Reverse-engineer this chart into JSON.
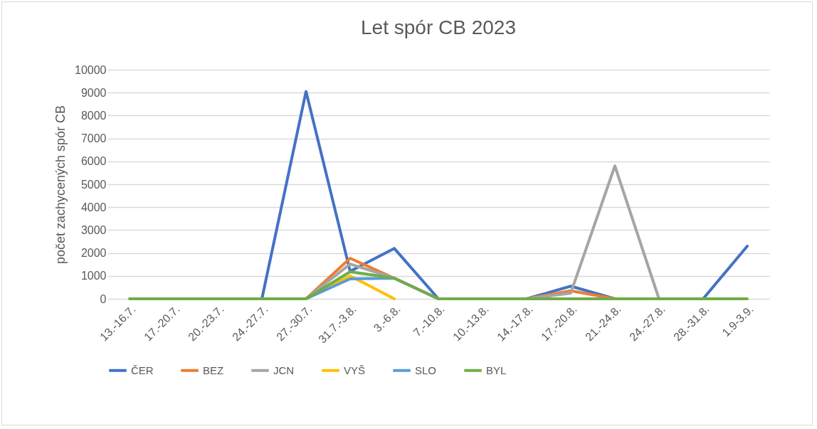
{
  "chart_data": {
    "type": "line",
    "title": "Let spór CB 2023",
    "ylabel": "počet zachycených spór CB",
    "categories": [
      "13.-16.7.",
      "17.-20.7.",
      "20.-23.7.",
      "24.-27.7.",
      "27.-30.7.",
      "31.7.-3.8.",
      "3.-6.8.",
      "7.-10.8.",
      "10.-13.8.",
      "14.-17.8.",
      "17.-20.8.",
      "21.-24.8.",
      "24.-27.8.",
      "28.-31.8.",
      "1.9-3.9."
    ],
    "series": [
      {
        "name": "ČER",
        "color": "#4472c4",
        "values": [
          null,
          null,
          null,
          0,
          9050,
          1200,
          2200,
          0,
          null,
          0,
          550,
          0,
          null,
          0,
          2300
        ]
      },
      {
        "name": "BEZ",
        "color": "#ed7d31",
        "values": [
          null,
          null,
          null,
          null,
          0,
          1770,
          900,
          0,
          null,
          0,
          350,
          0,
          null,
          null,
          null
        ]
      },
      {
        "name": "JCN",
        "color": "#a5a5a5",
        "values": [
          null,
          null,
          null,
          null,
          0,
          1520,
          900,
          0,
          null,
          0,
          250,
          5800,
          0,
          null,
          null
        ]
      },
      {
        "name": "VYŠ",
        "color": "#ffc000",
        "values": [
          null,
          null,
          null,
          null,
          0,
          1000,
          0,
          null,
          null,
          null,
          null,
          null,
          null,
          null,
          null
        ]
      },
      {
        "name": "SLO",
        "color": "#5b9bd5",
        "values": [
          null,
          null,
          null,
          null,
          0,
          870,
          900,
          0,
          null,
          null,
          null,
          null,
          null,
          null,
          null
        ]
      },
      {
        "name": "BYL",
        "color": "#70ad47",
        "values": [
          0,
          0,
          0,
          0,
          0,
          1180,
          900,
          0,
          0,
          0,
          0,
          0,
          0,
          0,
          0
        ]
      }
    ],
    "ylim": [
      0,
      10000
    ],
    "yticks": [
      0,
      1000,
      2000,
      3000,
      4000,
      5000,
      6000,
      7000,
      8000,
      9000,
      10000
    ],
    "grid": "y",
    "legend": "bottom",
    "marker": "none",
    "line_style": "solid"
  }
}
